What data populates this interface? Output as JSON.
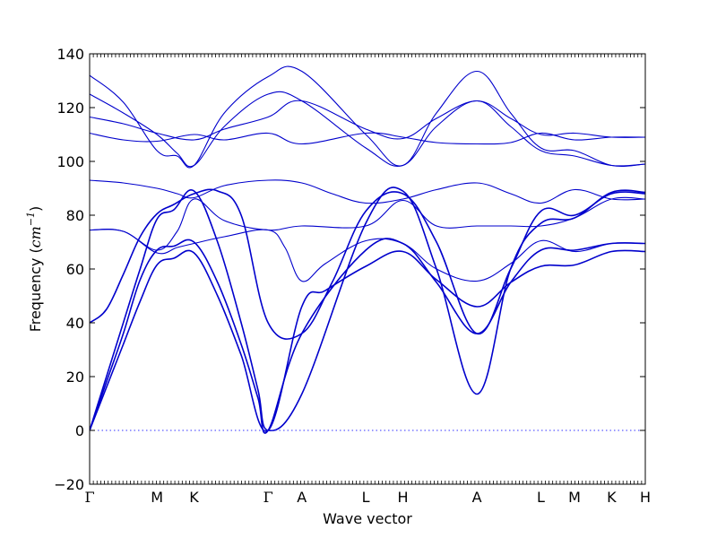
{
  "chart_data": {
    "type": "line",
    "title": "",
    "xlabel": "Wave vector",
    "ylabel_prefix": "Frequency (",
    "ylabel_unit_base": "cm",
    "ylabel_unit_exp": "−1",
    "ylabel_suffix": ")",
    "ylim": [
      -20,
      140
    ],
    "yticks": [
      -20,
      0,
      20,
      40,
      60,
      80,
      100,
      120,
      140
    ],
    "xlim": [
      0,
      16.5
    ],
    "grid": false,
    "legend": "none",
    "line_color": "#0000cc",
    "zero_line_color": "#3333ff",
    "high_symmetry_points": [
      {
        "label": "Γ",
        "x": 0
      },
      {
        "label": "M",
        "x": 2
      },
      {
        "label": "K",
        "x": 3.1
      },
      {
        "label": "Γ",
        "x": 5.3
      },
      {
        "label": "A",
        "x": 6.3
      },
      {
        "label": "L",
        "x": 8.2
      },
      {
        "label": "H",
        "x": 9.3
      },
      {
        "label": "A",
        "x": 11.5
      },
      {
        "label": "L",
        "x": 13.4
      },
      {
        "label": "M",
        "x": 14.4
      },
      {
        "label": "K",
        "x": 15.5
      },
      {
        "label": "H",
        "x": 16.5
      }
    ],
    "series": [
      {
        "x": [
          0,
          0.5,
          1.0,
          1.5,
          2.0,
          2.5,
          3.1,
          3.8,
          4.5,
          5.0,
          5.3,
          6.3,
          8.2,
          9.3,
          10.3,
          11.5,
          12.5,
          13.4,
          14.4,
          15.5,
          16.5
        ],
        "y": [
          0,
          20,
          40,
          60,
          78.5,
          82,
          89,
          70,
          40,
          15,
          0,
          13.5,
          77,
          89,
          60,
          13.5,
          60,
          77,
          79,
          88.5,
          88.5
        ]
      },
      {
        "x": [
          0,
          0.5,
          1.0,
          1.5,
          2.0,
          2.5,
          3.1,
          3.8,
          4.5,
          5.0,
          5.3,
          6.3,
          8.2,
          9.3,
          10.3,
          11.5,
          12.5,
          13.4,
          14.4,
          15.5,
          16.5
        ],
        "y": [
          0,
          18,
          36,
          56,
          67,
          68.5,
          70,
          55,
          32,
          12,
          0,
          36,
          67,
          69.5,
          55,
          36,
          55,
          67,
          67,
          69.5,
          69.5
        ]
      },
      {
        "x": [
          0,
          0.5,
          1.0,
          1.5,
          2.0,
          2.5,
          3.1,
          3.8,
          4.5,
          5.3,
          6.3,
          7.0,
          8.2,
          9.3,
          10.3,
          11.5,
          12.5,
          13.4,
          14.4,
          15.5,
          16.5
        ],
        "y": [
          0,
          16,
          32,
          48,
          61.5,
          64,
          66,
          50,
          28,
          0,
          46,
          52,
          61,
          66.5,
          56,
          46,
          55,
          61,
          61.5,
          66.5,
          66.5
        ]
      },
      {
        "x": [
          0,
          0.5,
          1.0,
          1.5,
          2.0,
          2.5,
          3.1,
          3.8,
          4.5,
          5.3,
          6.3,
          7.2,
          8.2,
          9.3,
          10.3,
          11.5,
          12.5,
          13.4,
          14.4,
          15.5,
          16.5
        ],
        "y": [
          40,
          45,
          58,
          72,
          80.5,
          84,
          88,
          89,
          80,
          40,
          36,
          55,
          81.5,
          88,
          70,
          36,
          60,
          81.5,
          80,
          88,
          88
        ]
      },
      {
        "x": [
          0,
          1.0,
          2.0,
          2.6,
          3.1,
          4.0,
          5.3,
          5.8,
          6.3,
          7.0,
          8.2,
          9.3,
          10.3,
          11.5,
          12.5,
          13.4,
          14.4,
          15.5,
          16.5
        ],
        "y": [
          74.5,
          74,
          66,
          68,
          69.5,
          72,
          74.5,
          68,
          55.5,
          62,
          70.5,
          69.5,
          60,
          55.5,
          62,
          70.5,
          66.5,
          69.5,
          69.5
        ]
      },
      {
        "x": [
          0,
          1.0,
          2.0,
          2.6,
          3.1,
          4.0,
          5.3,
          6.3,
          8.2,
          9.3,
          10.3,
          11.5,
          12.5,
          13.4,
          14.4,
          15.5,
          16.5
        ],
        "y": [
          74.5,
          74,
          67,
          74,
          86,
          78,
          74.5,
          76,
          76,
          85.5,
          76,
          76,
          76,
          76,
          79,
          86,
          86
        ]
      },
      {
        "x": [
          0,
          1.0,
          2.0,
          2.6,
          3.1,
          4.0,
          5.3,
          6.3,
          7.2,
          8.2,
          9.3,
          10.3,
          11.5,
          12.5,
          13.4,
          14.4,
          15.5,
          16.5
        ],
        "y": [
          93,
          92,
          90,
          88,
          86.5,
          91,
          93,
          92,
          88,
          84.5,
          86,
          89.5,
          92,
          88,
          84.5,
          89.5,
          86,
          86
        ]
      },
      {
        "x": [
          0,
          1.0,
          2.0,
          2.6,
          3.1,
          4.0,
          5.3,
          6.3,
          8.2,
          9.3,
          10.3,
          11.5,
          12.5,
          13.4,
          14.4,
          15.5,
          16.5
        ],
        "y": [
          132,
          122,
          104,
          102,
          98.5,
          118,
          131.5,
          133.5,
          110,
          98.5,
          118,
          133.5,
          118,
          105,
          104,
          98.5,
          99
        ]
      },
      {
        "x": [
          0,
          1.0,
          2.0,
          2.6,
          3.1,
          4.0,
          5.3,
          6.3,
          8.2,
          9.3,
          10.3,
          11.5,
          12.5,
          13.4,
          14.4,
          15.5,
          16.5
        ],
        "y": [
          125,
          118,
          110,
          103,
          98.5,
          113,
          125,
          122.5,
          105,
          98.5,
          113,
          122.5,
          113,
          104,
          102,
          98.5,
          99
        ]
      },
      {
        "x": [
          0,
          1.0,
          2.0,
          3.1,
          4.0,
          5.3,
          6.3,
          8.2,
          9.3,
          10.3,
          11.5,
          12.5,
          13.4,
          14.4,
          15.5,
          16.5
        ],
        "y": [
          116.5,
          114,
          110.5,
          108,
          112,
          116.5,
          122.5,
          112,
          108.5,
          116,
          122.5,
          116,
          110,
          110.5,
          109,
          109
        ]
      },
      {
        "x": [
          0,
          1.0,
          2.0,
          3.1,
          4.0,
          5.3,
          6.3,
          8.2,
          9.3,
          10.3,
          11.5,
          12.5,
          13.4,
          14.4,
          15.5,
          16.5
        ],
        "y": [
          110.5,
          108,
          107.5,
          110,
          108,
          110.5,
          106.5,
          110.5,
          109,
          107,
          106.5,
          107,
          110.5,
          108,
          109,
          109
        ]
      }
    ]
  }
}
